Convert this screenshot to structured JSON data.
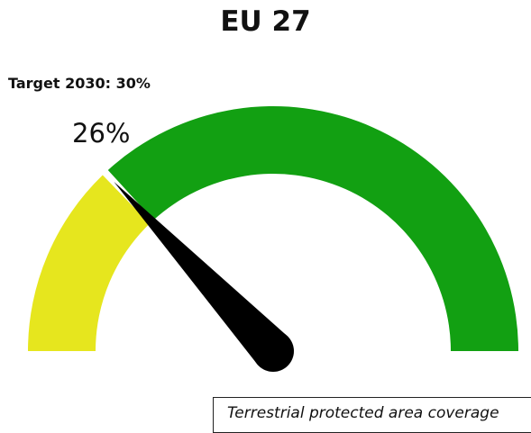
{
  "chart_data": {
    "type": "gauge",
    "title": "EU 27",
    "target_label": "Target 2030: 30%",
    "value": 26,
    "value_label": "26%",
    "target": 30,
    "range": [
      0,
      100
    ],
    "bands": [
      {
        "from": 0,
        "to": 26,
        "color": "#e6e61e"
      },
      {
        "from": 26,
        "to": 100,
        "color": "#12a012"
      }
    ],
    "needle_color": "#000000",
    "caption": "Terrestrial protected area coverage"
  }
}
